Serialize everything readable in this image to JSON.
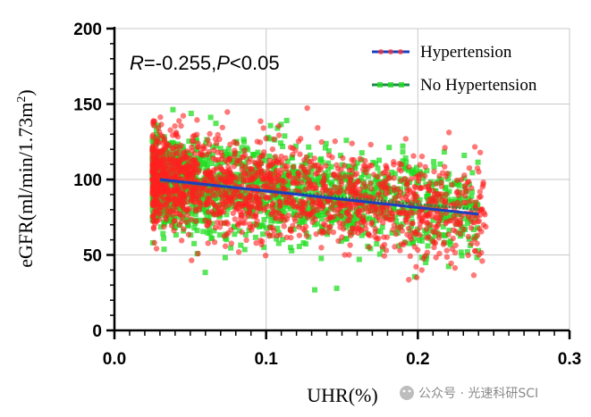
{
  "chart_data": {
    "type": "scatter",
    "xlabel": "UHR(%)",
    "ylabel": "eGFR(ml/min/1.73m²)",
    "ylabel_main": "eGFR(ml/min/1.73m",
    "ylabel_sup": "2",
    "ylabel_close": ")",
    "xlim": [
      0.0,
      0.3
    ],
    "ylim": [
      0,
      200
    ],
    "xticks": [
      "0.0",
      "0.1",
      "0.2",
      "0.3"
    ],
    "yticks": [
      "0",
      "50",
      "100",
      "150",
      "200"
    ],
    "grid": true,
    "legend_position": "top-right",
    "annotation": {
      "r_symbol": "R",
      "r_value": "=-0.255,",
      "p_symbol": "P",
      "p_value": "<0.05"
    },
    "series": [
      {
        "name": "No Hypertension",
        "marker": "square",
        "color": "#22dd22",
        "line_color": "#1e8a4a",
        "x_range": [
          0.025,
          0.24
        ],
        "y_center": 95,
        "y_spread": 15,
        "fit": {
          "x": [
            0.03,
            0.24
          ],
          "y": [
            99,
            80
          ]
        }
      },
      {
        "name": "Hypertension",
        "marker": "circle",
        "color": "#ff2020",
        "line_color": "#1a3fbf",
        "x_range": [
          0.025,
          0.245
        ],
        "y_center": 93,
        "y_spread": 16,
        "fit": {
          "x": [
            0.03,
            0.24
          ],
          "y": [
            100,
            77
          ]
        }
      }
    ]
  },
  "watermark": {
    "label": "公众号 · 光速科研SCI"
  }
}
